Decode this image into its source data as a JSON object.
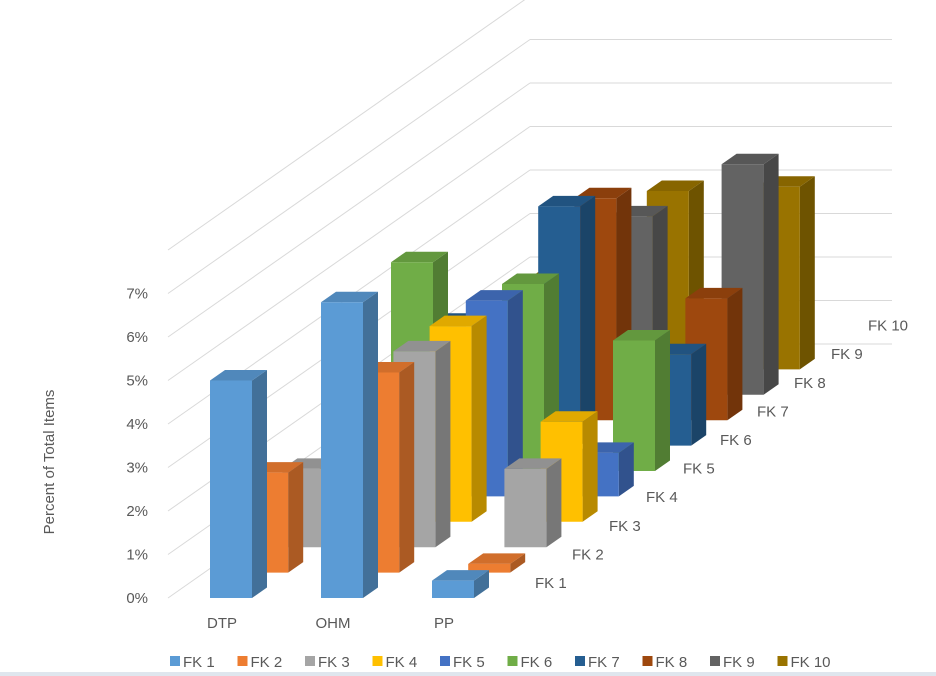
{
  "chart_data": {
    "type": "bar",
    "variant": "3d-column",
    "title": "",
    "xlabel": "",
    "ylabel": "Percent of Total Items",
    "ylim": [
      0,
      7
    ],
    "y_ticks": [
      "0%",
      "1%",
      "2%",
      "3%",
      "4%",
      "5%",
      "6%",
      "7%"
    ],
    "grid": true,
    "legend_position": "bottom",
    "categories": [
      "DTP",
      "OHM",
      "PP"
    ],
    "series": [
      {
        "name": "FK 1",
        "color": "#5b9bd5",
        "values": [
          5.0,
          6.8,
          0.4
        ]
      },
      {
        "name": "FK 2",
        "color": "#ed7d31",
        "values": [
          2.3,
          4.6,
          0.2
        ]
      },
      {
        "name": "FK 3",
        "color": "#a5a5a5",
        "values": [
          1.8,
          4.5,
          1.8
        ]
      },
      {
        "name": "FK 4",
        "color": "#ffc000",
        "values": [
          1.2,
          4.5,
          2.3
        ]
      },
      {
        "name": "FK 5",
        "color": "#4472c4",
        "values": [
          1.3,
          4.5,
          1.0
        ]
      },
      {
        "name": "FK 6",
        "color": "#70ad47",
        "values": [
          4.8,
          4.3,
          3.0
        ]
      },
      {
        "name": "FK 7",
        "color": "#255e91",
        "values": [
          2.8,
          5.5,
          2.1
        ]
      },
      {
        "name": "FK 8",
        "color": "#9e480e",
        "values": [
          1.8,
          5.1,
          2.8
        ]
      },
      {
        "name": "FK 9",
        "color": "#636363",
        "values": [
          1.3,
          4.1,
          5.3
        ]
      },
      {
        "name": "FK 10",
        "color": "#997300",
        "values": [
          2.2,
          4.1,
          4.2
        ]
      }
    ]
  }
}
